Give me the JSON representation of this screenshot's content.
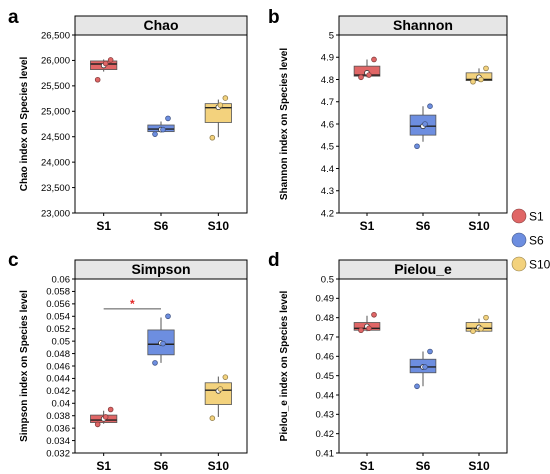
{
  "colors": {
    "S1": "#e06666",
    "S6": "#6d8ee0",
    "S10": "#f3d27d",
    "strip_bg": "#e6e6e6",
    "sig_star": "#e32626"
  },
  "legend": {
    "position": "right",
    "items": [
      "S1",
      "S6",
      "S10"
    ]
  },
  "chart_data": [
    {
      "panel": "a",
      "type": "box",
      "title": "Chao",
      "ylabel": "Chao index on Species level",
      "ylim": [
        23000,
        26500
      ],
      "yticks": [
        23000,
        23500,
        24000,
        24500,
        25000,
        25500,
        26000,
        26500
      ],
      "ytick_labels": [
        "23,000",
        "23,500",
        "24,000",
        "24,500",
        "25,000",
        "25,500",
        "26,000",
        "26,500"
      ],
      "categories": [
        "S1",
        "S6",
        "S10"
      ],
      "boxes": [
        {
          "group": "S1",
          "whisker_low": 25780,
          "q1": 25820,
          "median": 25930,
          "q3": 25990,
          "whisker_high": 26020,
          "mean": 25900,
          "points": [
            25620,
            26010,
            25940
          ]
        },
        {
          "group": "S6",
          "whisker_low": 24590,
          "q1": 24600,
          "median": 24650,
          "q3": 24730,
          "whisker_high": 24800,
          "mean": 24640,
          "points": [
            24550,
            24860,
            24640
          ]
        },
        {
          "group": "S10",
          "whisker_low": 24490,
          "q1": 24780,
          "median": 25070,
          "q3": 25150,
          "whisker_high": 25230,
          "mean": 25080,
          "points": [
            24480,
            25260,
            25120
          ]
        }
      ],
      "significance": []
    },
    {
      "panel": "b",
      "type": "box",
      "title": "Shannon",
      "ylabel": "Shannon index on Species level",
      "ylim": [
        4.2,
        5.0
      ],
      "yticks": [
        4.2,
        4.3,
        4.4,
        4.5,
        4.6,
        4.7,
        4.8,
        4.9,
        5.0
      ],
      "ytick_labels": [
        "4.2",
        "4.3",
        "4.4",
        "4.5",
        "4.6",
        "4.7",
        "4.8",
        "4.9",
        "5"
      ],
      "categories": [
        "S1",
        "S6",
        "S10"
      ],
      "boxes": [
        {
          "group": "S1",
          "whisker_low": 4.81,
          "q1": 4.815,
          "median": 4.82,
          "q3": 4.86,
          "whisker_high": 4.89,
          "mean": 4.83,
          "points": [
            4.81,
            4.89,
            4.82
          ]
        },
        {
          "group": "S6",
          "whisker_low": 4.52,
          "q1": 4.55,
          "median": 4.59,
          "q3": 4.64,
          "whisker_high": 4.68,
          "mean": 4.59,
          "points": [
            4.5,
            4.68,
            4.6
          ]
        },
        {
          "group": "S10",
          "whisker_low": 4.79,
          "q1": 4.795,
          "median": 4.8,
          "q3": 4.83,
          "whisker_high": 4.85,
          "mean": 4.81,
          "points": [
            4.79,
            4.85,
            4.8
          ]
        }
      ],
      "significance": []
    },
    {
      "panel": "c",
      "type": "box",
      "title": "Simpson",
      "ylabel": "Simpson index on Species level",
      "ylim": [
        0.032,
        0.06
      ],
      "yticks": [
        0.032,
        0.034,
        0.036,
        0.038,
        0.04,
        0.042,
        0.044,
        0.046,
        0.048,
        0.05,
        0.052,
        0.054,
        0.056,
        0.058,
        0.06
      ],
      "ytick_labels": [
        "0.032",
        "0.034",
        "0.036",
        "0.038",
        "0.04",
        "0.042",
        "0.044",
        "0.046",
        "0.048",
        "0.05",
        "0.052",
        "0.054",
        "0.056",
        "0.058",
        "0.06"
      ],
      "categories": [
        "S1",
        "S6",
        "S10"
      ],
      "boxes": [
        {
          "group": "S1",
          "whisker_low": 0.0367,
          "q1": 0.0369,
          "median": 0.0373,
          "q3": 0.0381,
          "whisker_high": 0.0388,
          "mean": 0.0375,
          "points": [
            0.0366,
            0.039,
            0.0378
          ]
        },
        {
          "group": "S6",
          "whisker_low": 0.0465,
          "q1": 0.0478,
          "median": 0.0495,
          "q3": 0.0518,
          "whisker_high": 0.0538,
          "mean": 0.0497,
          "points": [
            0.0465,
            0.054,
            0.0496
          ]
        },
        {
          "group": "S10",
          "whisker_low": 0.0378,
          "q1": 0.0398,
          "median": 0.0421,
          "q3": 0.0433,
          "whisker_high": 0.0443,
          "mean": 0.042,
          "points": [
            0.0376,
            0.0442,
            0.0423
          ]
        }
      ],
      "significance": [
        {
          "from": "S1",
          "to": "S6",
          "label": "*",
          "y": 0.0552
        }
      ]
    },
    {
      "panel": "d",
      "type": "box",
      "title": "Pielou_e",
      "ylabel": "Pielou_e index on Species level",
      "ylim": [
        0.41,
        0.5
      ],
      "yticks": [
        0.41,
        0.42,
        0.43,
        0.44,
        0.45,
        0.46,
        0.47,
        0.48,
        0.49,
        0.5
      ],
      "ytick_labels": [
        "0.41",
        "0.42",
        "0.43",
        "0.44",
        "0.45",
        "0.46",
        "0.47",
        "0.48",
        "0.49",
        "0.5"
      ],
      "categories": [
        "S1",
        "S6",
        "S10"
      ],
      "boxes": [
        {
          "group": "S1",
          "whisker_low": 0.473,
          "q1": 0.4735,
          "median": 0.4745,
          "q3": 0.4775,
          "whisker_high": 0.481,
          "mean": 0.4755,
          "points": [
            0.4735,
            0.4815,
            0.4745
          ]
        },
        {
          "group": "S6",
          "whisker_low": 0.4445,
          "q1": 0.4515,
          "median": 0.4545,
          "q3": 0.4585,
          "whisker_high": 0.4625,
          "mean": 0.4545,
          "points": [
            0.4445,
            0.4625,
            0.4545
          ]
        },
        {
          "group": "S10",
          "whisker_low": 0.4725,
          "q1": 0.473,
          "median": 0.4745,
          "q3": 0.4775,
          "whisker_high": 0.4795,
          "mean": 0.475,
          "points": [
            0.473,
            0.48,
            0.4742
          ]
        }
      ],
      "significance": []
    }
  ]
}
